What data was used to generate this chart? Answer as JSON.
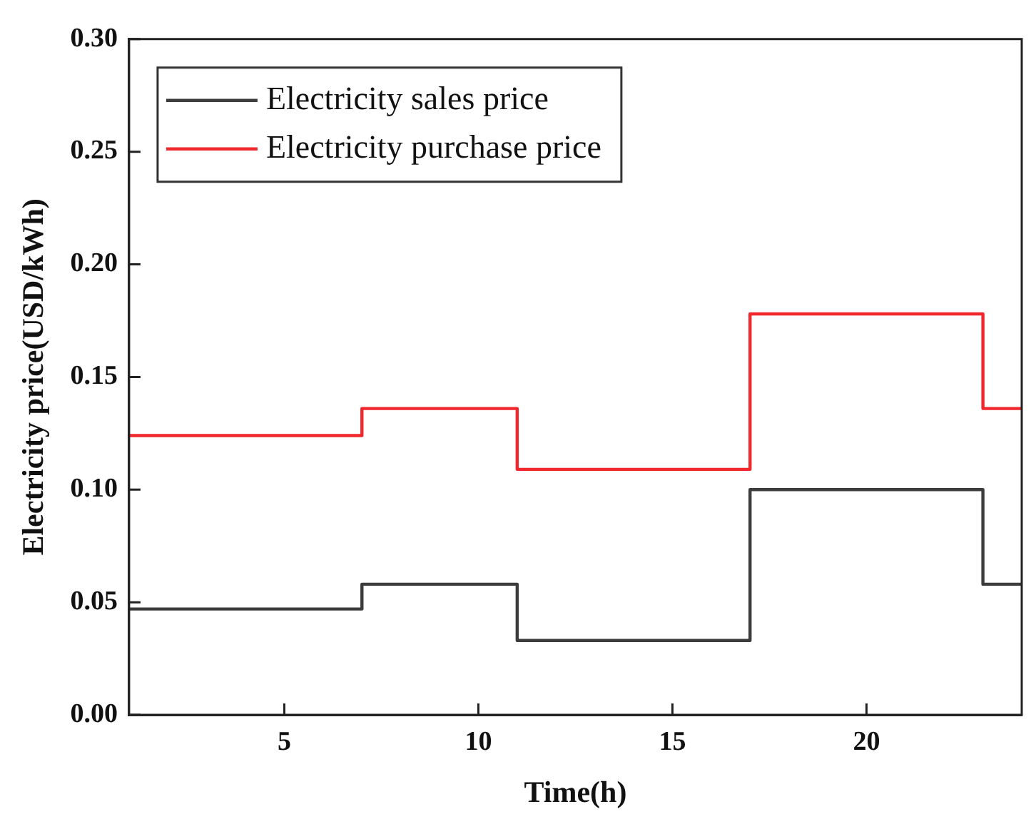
{
  "chart_data": {
    "type": "step",
    "xlabel": "Time(h)",
    "ylabel": "Electricity price(USD/kWh)",
    "x": [
      1,
      7,
      11,
      17,
      23,
      24
    ],
    "series": [
      {
        "name": "Electricity sales price",
        "color": "#3c3c3c",
        "values": [
          0.047,
          0.058,
          0.033,
          0.1,
          0.058,
          0.058
        ]
      },
      {
        "name": "Electricity purchase price",
        "color": "#f0282d",
        "values": [
          0.124,
          0.136,
          0.109,
          0.178,
          0.136,
          0.136
        ]
      }
    ],
    "xlim": [
      1,
      24
    ],
    "xticks": [
      5,
      10,
      15,
      20
    ],
    "ylim": [
      0,
      0.3
    ],
    "yticks": [
      {
        "value": 0,
        "label": "0.00"
      },
      {
        "value": 0.05,
        "label": "0.05"
      },
      {
        "value": 0.1,
        "label": "0.10"
      },
      {
        "value": 0.15,
        "label": "0.15"
      },
      {
        "value": 0.2,
        "label": "0.20"
      },
      {
        "value": 0.25,
        "label": "0.25"
      },
      {
        "value": 0.3,
        "label": "0.30"
      }
    ],
    "grid": false,
    "legend": "top left",
    "line_style": "solid",
    "marker": "none"
  }
}
